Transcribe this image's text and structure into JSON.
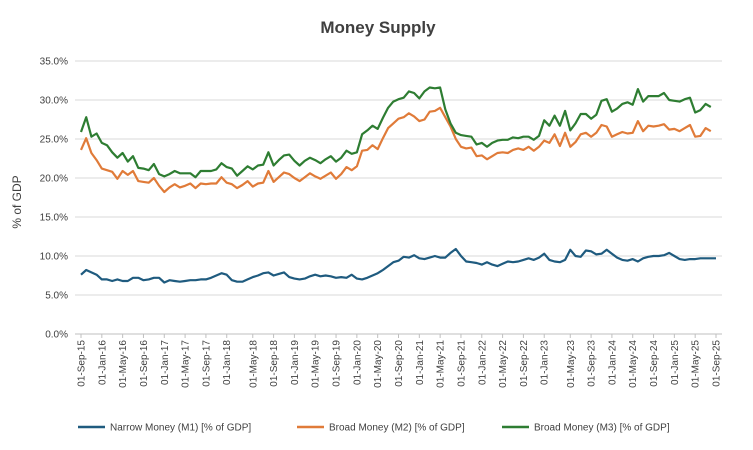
{
  "chart_data": {
    "type": "line",
    "title": "Money Supply",
    "ylabel": "% of GDP",
    "xlabel": "",
    "ylim": [
      0,
      35
    ],
    "yticks": [
      "0.0%",
      "5.0%",
      "10.0%",
      "15.0%",
      "20.0%",
      "25.0%",
      "30.0%",
      "35.0%"
    ],
    "grid": true,
    "legend_position": "bottom",
    "x_tick_labels": [
      "01-Sep-15",
      "01-Jan-16",
      "01-May-16",
      "01-Sep-16",
      "01-Jan-17",
      "01-May-17",
      "01-Sep-17",
      "01-Jan-18",
      "01-May-18",
      "01-Sep-18",
      "01-Jan-19",
      "01-May-19",
      "01-Sep-19",
      "01-Jan-20",
      "01-May-20",
      "01-Sep-20",
      "01-Jan-21",
      "01-May-21",
      "01-Sep-21",
      "01-Jan-22",
      "01-May-22",
      "01-Sep-22",
      "01-Jan-23",
      "01-May-23",
      "01-Sep-23",
      "01-Jan-24",
      "01-May-24",
      "01-Sep-24",
      "01-Jan-25",
      "01-May-25",
      "01-Sep-25"
    ],
    "x_start": "2015-09",
    "x_end": "2025-09",
    "series": [
      {
        "name": "Narrow Money (M1) [% of GDP]",
        "color": "#1f5b7f",
        "values": [
          7.6,
          8.2,
          7.9,
          7.6,
          7.0,
          7.0,
          6.8,
          7.0,
          6.8,
          6.8,
          7.2,
          7.2,
          6.9,
          7.0,
          7.2,
          7.2,
          6.6,
          6.9,
          6.8,
          6.7,
          6.8,
          6.9,
          6.9,
          7.0,
          7.0,
          7.2,
          7.5,
          7.8,
          7.6,
          6.9,
          6.7,
          6.7,
          7.0,
          7.3,
          7.5,
          7.8,
          7.9,
          7.5,
          7.7,
          7.9,
          7.3,
          7.1,
          7.0,
          7.1,
          7.4,
          7.6,
          7.4,
          7.5,
          7.4,
          7.2,
          7.3,
          7.2,
          7.6,
          7.1,
          7.0,
          7.2,
          7.5,
          7.8,
          8.2,
          8.7,
          9.2,
          9.4,
          9.9,
          9.8,
          10.1,
          9.7,
          9.6,
          9.8,
          10.0,
          9.8,
          9.8,
          10.4,
          10.9,
          10.0,
          9.3,
          9.2,
          9.1,
          8.9,
          9.2,
          8.9,
          8.7,
          9.0,
          9.3,
          9.2,
          9.3,
          9.5,
          9.7,
          9.5,
          9.8,
          10.3,
          9.5,
          9.3,
          9.2,
          9.5,
          10.8,
          10.0,
          9.9,
          10.7,
          10.6,
          10.2,
          10.3,
          10.8,
          10.3,
          9.8,
          9.5,
          9.4,
          9.6,
          9.3,
          9.7,
          9.9,
          10.0,
          10.0,
          10.1,
          10.4,
          10.0,
          9.6,
          9.5,
          9.6,
          9.6,
          9.7,
          9.7,
          9.7,
          9.7
        ]
      },
      {
        "name": "Broad Money (M2) [% of GDP]",
        "color": "#e07b39",
        "values": [
          23.6,
          25.1,
          23.2,
          22.3,
          21.2,
          21.0,
          20.8,
          19.9,
          20.9,
          20.4,
          20.9,
          19.6,
          19.5,
          19.4,
          20.0,
          19.0,
          18.2,
          18.8,
          19.2,
          18.8,
          19.0,
          19.3,
          18.7,
          19.3,
          19.2,
          19.3,
          19.3,
          20.1,
          19.4,
          19.2,
          18.7,
          19.1,
          19.6,
          18.9,
          19.3,
          19.4,
          20.9,
          19.5,
          20.1,
          20.7,
          20.5,
          20.0,
          19.6,
          20.1,
          20.6,
          20.2,
          19.9,
          20.3,
          20.7,
          19.9,
          20.5,
          21.4,
          21.0,
          21.5,
          23.5,
          23.6,
          24.2,
          23.7,
          25.1,
          26.4,
          27.0,
          27.6,
          27.8,
          28.3,
          27.9,
          27.3,
          27.5,
          28.5,
          28.6,
          29.0,
          27.8,
          26.6,
          25.0,
          24.0,
          23.8,
          23.9,
          22.8,
          22.9,
          22.4,
          22.8,
          23.2,
          23.3,
          23.2,
          23.6,
          23.8,
          23.6,
          24.0,
          23.5,
          24.0,
          24.8,
          24.5,
          25.6,
          24.1,
          25.8,
          24.0,
          24.6,
          25.6,
          25.8,
          25.3,
          25.8,
          26.8,
          26.6,
          25.3,
          25.6,
          25.9,
          25.7,
          25.8,
          27.3,
          26.0,
          26.7,
          26.6,
          26.7,
          26.9,
          26.2,
          26.3,
          26.0,
          26.4,
          26.8,
          25.3,
          25.4,
          26.4,
          26.0
        ]
      },
      {
        "name": "Broad Money (M3) [% of GDP]",
        "color": "#2e7d32",
        "values": [
          25.9,
          27.8,
          25.3,
          25.7,
          24.5,
          24.2,
          23.3,
          22.6,
          23.2,
          22.1,
          22.8,
          21.3,
          21.2,
          21.0,
          21.8,
          20.5,
          20.2,
          20.5,
          20.9,
          20.6,
          20.6,
          20.6,
          20.1,
          20.9,
          20.9,
          20.9,
          21.1,
          21.9,
          21.4,
          21.2,
          20.3,
          20.9,
          21.5,
          21.1,
          21.6,
          21.7,
          23.3,
          21.6,
          22.3,
          22.9,
          23.0,
          22.2,
          21.6,
          22.2,
          22.6,
          22.3,
          21.9,
          22.4,
          22.8,
          22.1,
          22.6,
          23.5,
          23.1,
          23.3,
          25.6,
          26.1,
          26.7,
          26.3,
          27.7,
          29.0,
          29.8,
          30.1,
          30.3,
          31.1,
          30.9,
          30.2,
          31.1,
          31.6,
          31.5,
          31.6,
          28.8,
          27.0,
          25.8,
          25.5,
          25.4,
          25.3,
          24.3,
          24.5,
          24.0,
          24.5,
          24.8,
          24.9,
          24.9,
          25.2,
          25.1,
          25.3,
          25.3,
          24.9,
          25.4,
          27.4,
          26.7,
          28.0,
          26.7,
          28.6,
          26.1,
          27.0,
          28.2,
          28.2,
          27.6,
          28.1,
          29.9,
          30.1,
          28.5,
          28.9,
          29.5,
          29.7,
          29.4,
          31.4,
          29.8,
          30.5,
          30.5,
          30.5,
          30.9,
          30.0,
          29.9,
          29.8,
          30.1,
          30.3,
          28.4,
          28.7,
          29.5,
          29.1
        ]
      }
    ]
  }
}
